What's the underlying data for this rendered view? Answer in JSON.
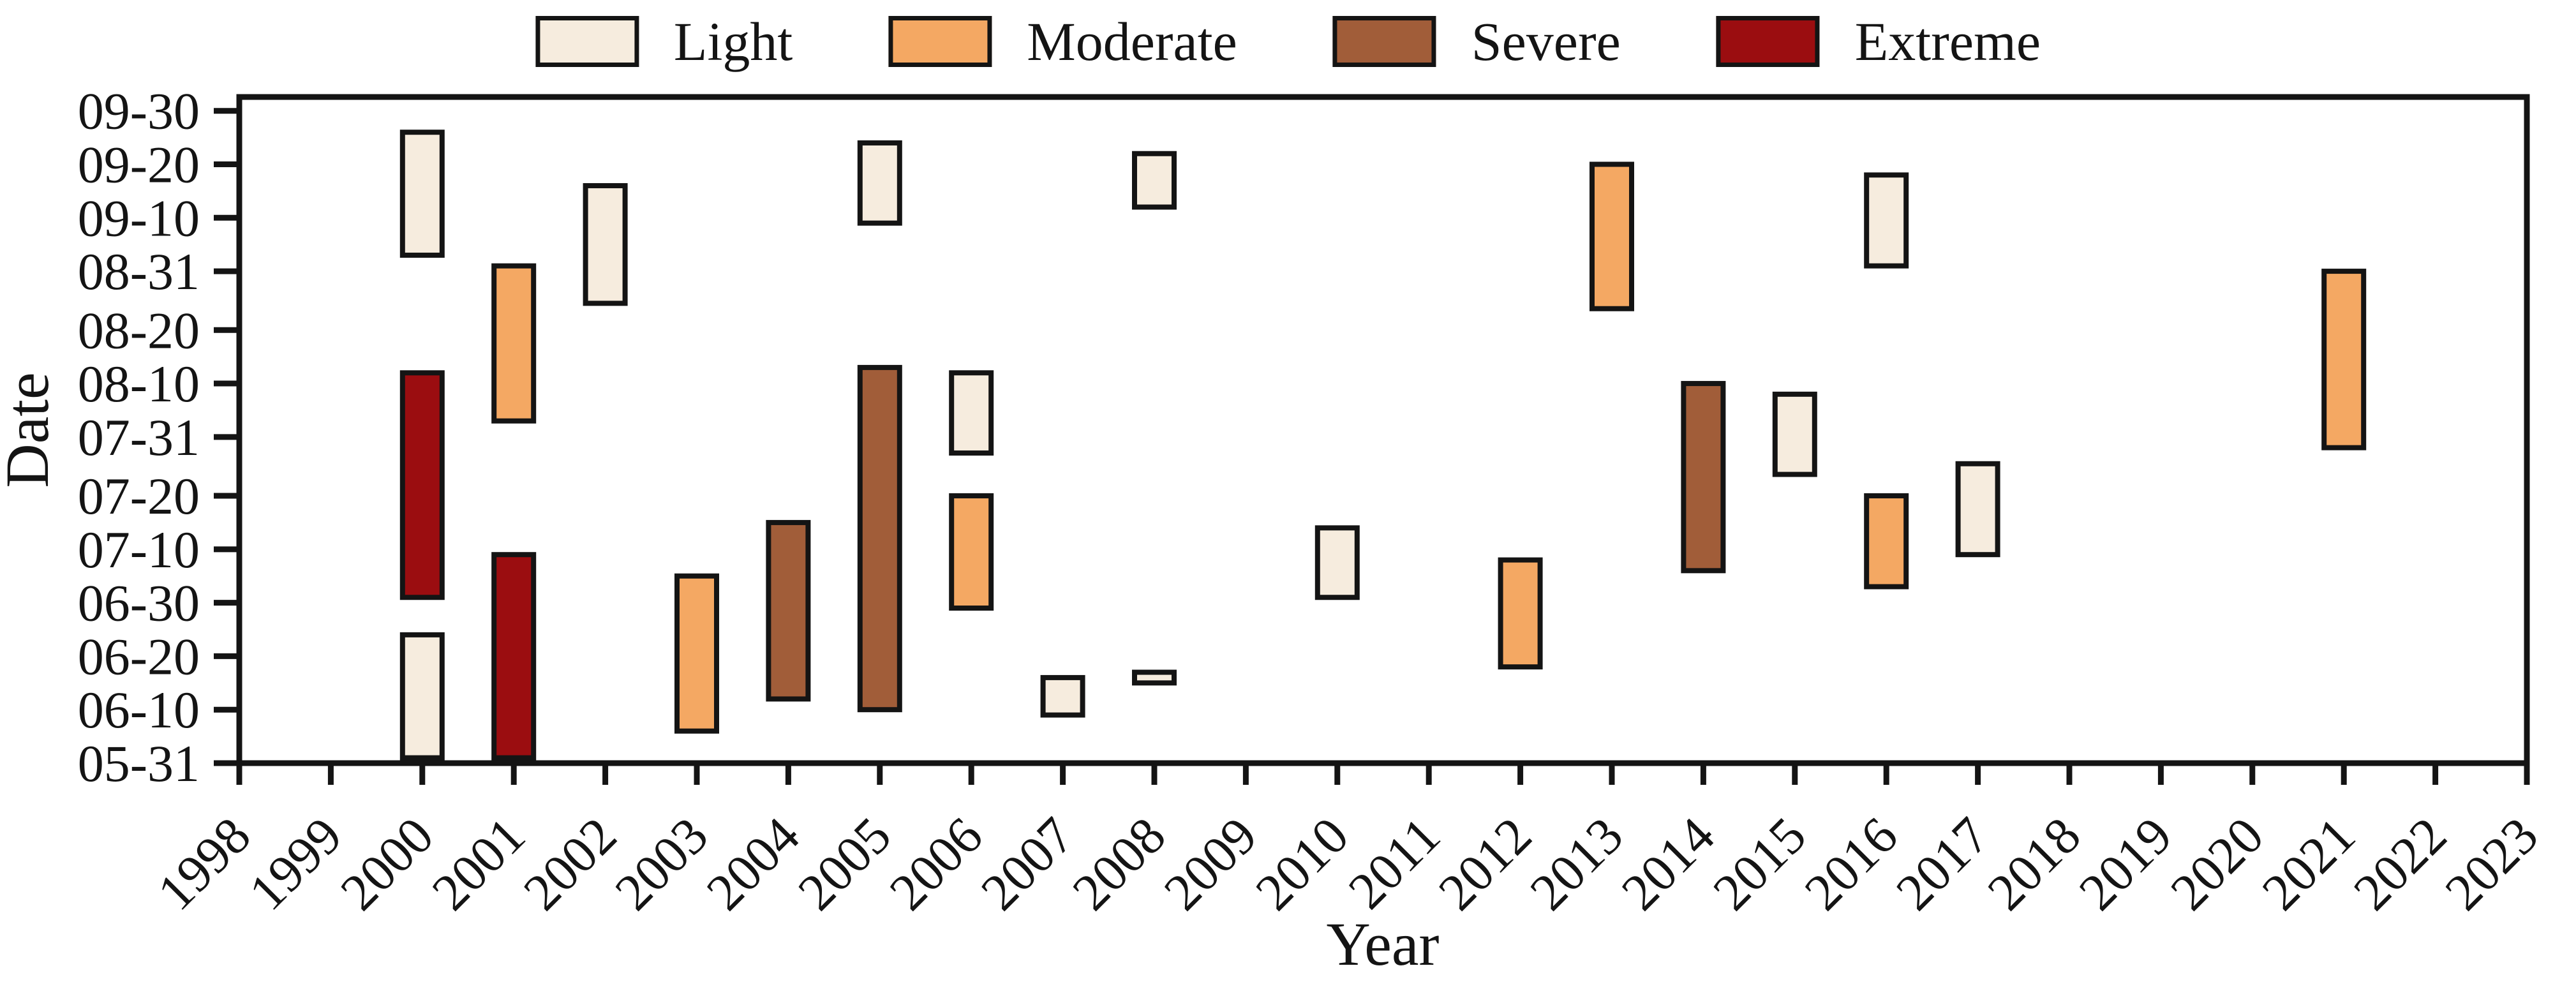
{
  "figure": {
    "background": "#ffffff",
    "axis_color": "#141414"
  },
  "chart_data": {
    "type": "bar",
    "variant": "floating date-range bars (one column per year, colored by severity)",
    "title": "",
    "xlabel": "Year",
    "ylabel": "Date",
    "grid": false,
    "legend_position": "top center, horizontal row",
    "x_range": [
      1998,
      2023
    ],
    "y_range_dates": [
      "05-31",
      "10-02"
    ],
    "x_ticks": [
      1998,
      1999,
      2000,
      2001,
      2002,
      2003,
      2004,
      2005,
      2006,
      2007,
      2008,
      2009,
      2010,
      2011,
      2012,
      2013,
      2014,
      2015,
      2016,
      2017,
      2018,
      2019,
      2020,
      2021,
      2022,
      2023
    ],
    "y_ticks": [
      "05-31",
      "06-10",
      "06-20",
      "06-30",
      "07-10",
      "07-20",
      "07-31",
      "08-10",
      "08-20",
      "08-31",
      "09-10",
      "09-20",
      "09-30"
    ],
    "legend": [
      {
        "label": "Light",
        "color": "#f6ecde"
      },
      {
        "label": "Moderate",
        "color": "#f4a863"
      },
      {
        "label": "Severe",
        "color": "#a15d39"
      },
      {
        "label": "Extreme",
        "color": "#9b0d10"
      }
    ],
    "events": [
      {
        "year": 2000,
        "severity": "Light",
        "start": "06-01",
        "end": "06-24"
      },
      {
        "year": 2000,
        "severity": "Extreme",
        "start": "07-01",
        "end": "08-12"
      },
      {
        "year": 2000,
        "severity": "Light",
        "start": "09-03",
        "end": "09-26"
      },
      {
        "year": 2001,
        "severity": "Extreme",
        "start": "06-01",
        "end": "07-09"
      },
      {
        "year": 2001,
        "severity": "Moderate",
        "start": "08-03",
        "end": "09-01"
      },
      {
        "year": 2002,
        "severity": "Light",
        "start": "08-25",
        "end": "09-16"
      },
      {
        "year": 2003,
        "severity": "Moderate",
        "start": "06-06",
        "end": "07-05"
      },
      {
        "year": 2004,
        "severity": "Severe",
        "start": "06-12",
        "end": "07-15"
      },
      {
        "year": 2005,
        "severity": "Severe",
        "start": "06-10",
        "end": "08-13"
      },
      {
        "year": 2005,
        "severity": "Light",
        "start": "09-09",
        "end": "09-24"
      },
      {
        "year": 2006,
        "severity": "Moderate",
        "start": "06-29",
        "end": "07-20"
      },
      {
        "year": 2006,
        "severity": "Light",
        "start": "07-28",
        "end": "08-12"
      },
      {
        "year": 2007,
        "severity": "Light",
        "start": "06-09",
        "end": "06-16"
      },
      {
        "year": 2008,
        "severity": "Light",
        "start": "06-15",
        "end": "06-17"
      },
      {
        "year": 2008,
        "severity": "Light",
        "start": "09-12",
        "end": "09-22"
      },
      {
        "year": 2010,
        "severity": "Light",
        "start": "07-01",
        "end": "07-14"
      },
      {
        "year": 2012,
        "severity": "Moderate",
        "start": "06-18",
        "end": "07-08"
      },
      {
        "year": 2013,
        "severity": "Moderate",
        "start": "08-24",
        "end": "09-20"
      },
      {
        "year": 2014,
        "severity": "Severe",
        "start": "07-06",
        "end": "08-10"
      },
      {
        "year": 2015,
        "severity": "Light",
        "start": "07-24",
        "end": "08-08"
      },
      {
        "year": 2016,
        "severity": "Moderate",
        "start": "07-03",
        "end": "07-20"
      },
      {
        "year": 2016,
        "severity": "Light",
        "start": "09-01",
        "end": "09-18"
      },
      {
        "year": 2017,
        "severity": "Light",
        "start": "07-09",
        "end": "07-26"
      },
      {
        "year": 2021,
        "severity": "Moderate",
        "start": "07-29",
        "end": "08-31"
      }
    ]
  }
}
